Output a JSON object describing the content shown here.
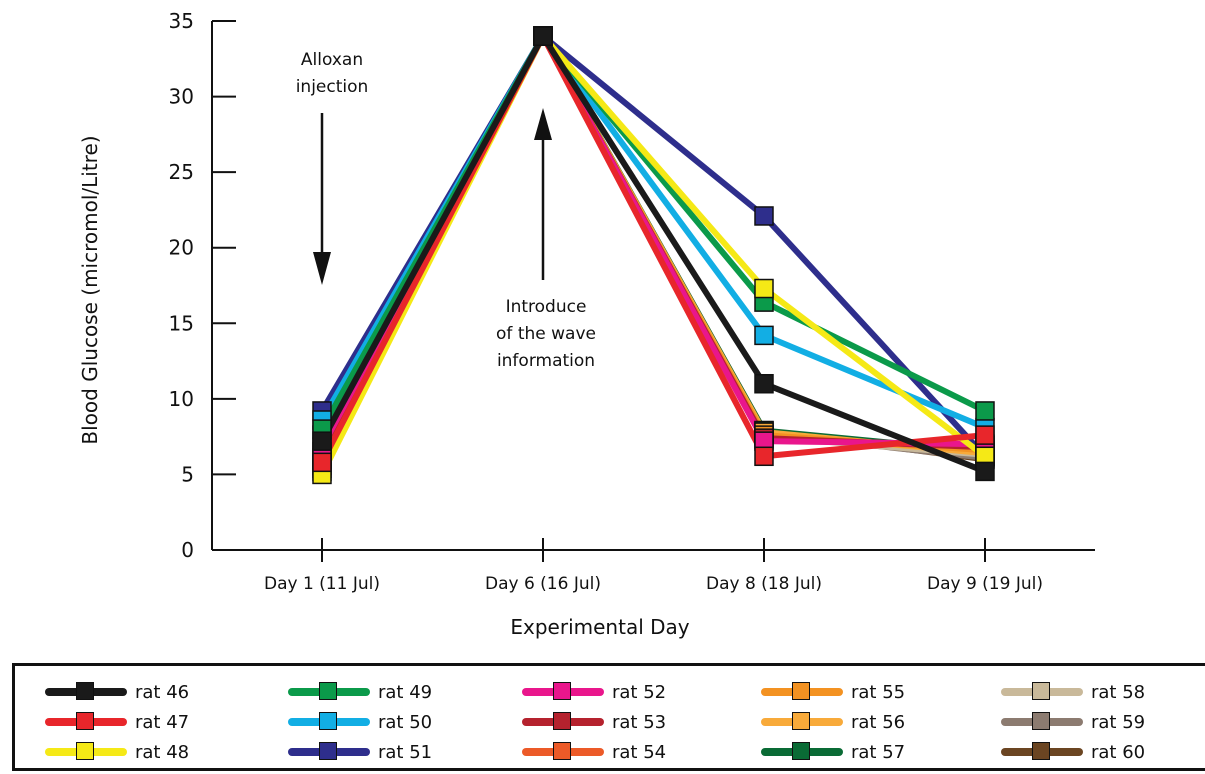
{
  "chart_data": {
    "type": "line",
    "xlabel": "Experimental Day",
    "ylabel": "Blood Glucose (micromol/Litre)",
    "categories": [
      "Day 1 (11 Jul)",
      "Day 6 (16 Jul)",
      "Day 8 (18 Jul)",
      "Day 9 (19 Jul)"
    ],
    "ylim": [
      0,
      35
    ],
    "yticks": [
      0,
      5,
      10,
      15,
      20,
      25,
      30,
      35
    ],
    "annotations": [
      {
        "lines": [
          "Alloxan",
          "injection"
        ],
        "arrow": "down",
        "category": "Day 1 (11 Jul)"
      },
      {
        "lines": [
          "Introduce",
          "of the wave",
          "information"
        ],
        "arrow": "up",
        "category": "Day 6 (16 Jul)"
      }
    ],
    "series": [
      {
        "name": "rat 46",
        "color": "#1a1a1a",
        "values": [
          7.2,
          34.0,
          11.0,
          5.2
        ]
      },
      {
        "name": "rat 47",
        "color": "#e8262b",
        "values": [
          5.8,
          34.0,
          6.2,
          7.6
        ]
      },
      {
        "name": "rat 48",
        "color": "#f5e916",
        "values": [
          5.0,
          34.0,
          17.3,
          6.2
        ]
      },
      {
        "name": "rat 49",
        "color": "#0b9a4a",
        "values": [
          8.0,
          34.0,
          16.4,
          9.2
        ]
      },
      {
        "name": "rat 50",
        "color": "#12aee4",
        "values": [
          8.6,
          34.0,
          14.2,
          8.1
        ]
      },
      {
        "name": "rat 51",
        "color": "#2e2e8c",
        "values": [
          9.2,
          34.0,
          22.1,
          6.2
        ]
      },
      {
        "name": "rat 52",
        "color": "#e9168c",
        "values": [
          6.8,
          34.0,
          7.2,
          7.0
        ]
      },
      {
        "name": "rat 53",
        "color": "#b5222e",
        "values": [
          6.3,
          34.0,
          7.4,
          6.8
        ]
      },
      {
        "name": "rat 54",
        "color": "#ec5a28",
        "values": [
          6.5,
          34.0,
          7.3,
          6.9
        ]
      },
      {
        "name": "rat 55",
        "color": "#f39222",
        "values": [
          6.0,
          34.0,
          7.6,
          6.6
        ]
      },
      {
        "name": "rat 56",
        "color": "#f8aa3a",
        "values": [
          5.6,
          34.0,
          7.8,
          6.4
        ]
      },
      {
        "name": "rat 57",
        "color": "#0a6b35",
        "values": [
          7.6,
          34.0,
          7.9,
          6.5
        ]
      },
      {
        "name": "rat 58",
        "color": "#c9b99a",
        "values": [
          6.1,
          34.0,
          7.5,
          6.3
        ]
      },
      {
        "name": "rat 59",
        "color": "#8c7b70",
        "values": [
          5.4,
          34.0,
          7.7,
          6.1
        ]
      },
      {
        "name": "rat 60",
        "color": "#6b4522",
        "values": [
          5.2,
          34.0,
          7.9,
          6.0
        ]
      }
    ]
  },
  "legend_order": [
    "rat 46",
    "rat 47",
    "rat 48",
    "rat 49",
    "rat 50",
    "rat 51",
    "rat 52",
    "rat 53",
    "rat 54",
    "rat 55",
    "rat 56",
    "rat 57",
    "rat 58",
    "rat 59",
    "rat 60"
  ]
}
